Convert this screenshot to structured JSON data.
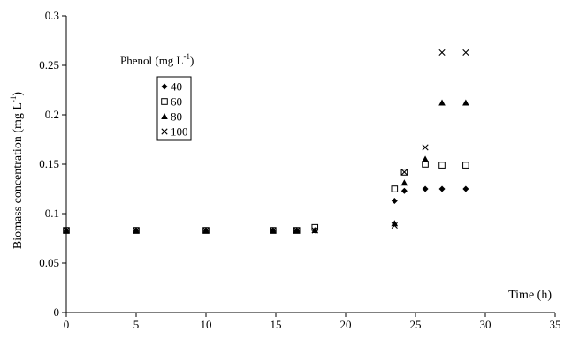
{
  "chart_data": {
    "type": "scatter",
    "title": "",
    "xlabel": "Time (h)",
    "ylabel": "Biomass concentration (mg L",
    "ylabel_superscript": "-1",
    "ylabel_close": ")",
    "xlim": [
      0,
      35
    ],
    "ylim": [
      0,
      0.3
    ],
    "x_ticks": [
      0,
      5,
      10,
      15,
      20,
      25,
      30,
      35
    ],
    "y_ticks": [
      0,
      0.05,
      0.1,
      0.15,
      0.2,
      0.25,
      0.3
    ],
    "x_tick_labels": [
      "0",
      "5",
      "10",
      "15",
      "20",
      "25",
      "30",
      "35"
    ],
    "y_tick_labels": [
      "0",
      "0.05",
      "0.1",
      "0.15",
      "0.2",
      "0.25",
      "0.3"
    ],
    "grid": false,
    "legend": {
      "title": "Phenol (mg L",
      "title_superscript": "-1",
      "title_close": ")",
      "placement": "upper-left"
    },
    "series": [
      {
        "name": "40",
        "marker": "diamond-filled",
        "points": [
          [
            0,
            0.083
          ],
          [
            5,
            0.083
          ],
          [
            10,
            0.083
          ],
          [
            14.8,
            0.083
          ],
          [
            16.5,
            0.083
          ],
          [
            17.8,
            0.083
          ],
          [
            23.5,
            0.113
          ],
          [
            24.2,
            0.123
          ],
          [
            25.7,
            0.125
          ],
          [
            26.9,
            0.125
          ],
          [
            28.6,
            0.125
          ]
        ]
      },
      {
        "name": "60",
        "marker": "square-open",
        "points": [
          [
            0,
            0.083
          ],
          [
            5,
            0.083
          ],
          [
            10,
            0.083
          ],
          [
            14.8,
            0.083
          ],
          [
            16.5,
            0.083
          ],
          [
            17.8,
            0.086
          ],
          [
            23.5,
            0.125
          ],
          [
            24.2,
            0.142
          ],
          [
            25.7,
            0.15
          ],
          [
            26.9,
            0.149
          ],
          [
            28.6,
            0.149
          ]
        ]
      },
      {
        "name": "80",
        "marker": "triangle-filled",
        "points": [
          [
            0,
            0.083
          ],
          [
            5,
            0.083
          ],
          [
            10,
            0.083
          ],
          [
            14.8,
            0.083
          ],
          [
            16.5,
            0.083
          ],
          [
            17.8,
            0.083
          ],
          [
            23.5,
            0.09
          ],
          [
            24.2,
            0.131
          ],
          [
            25.7,
            0.155
          ],
          [
            26.9,
            0.212
          ],
          [
            28.6,
            0.212
          ]
        ]
      },
      {
        "name": "100",
        "marker": "cross",
        "points": [
          [
            0,
            0.083
          ],
          [
            5,
            0.083
          ],
          [
            10,
            0.083
          ],
          [
            14.8,
            0.083
          ],
          [
            16.5,
            0.083
          ],
          [
            17.8,
            0.083
          ],
          [
            23.5,
            0.088
          ],
          [
            24.2,
            0.142
          ],
          [
            25.7,
            0.167
          ],
          [
            26.9,
            0.263
          ],
          [
            28.6,
            0.263
          ]
        ]
      }
    ]
  }
}
